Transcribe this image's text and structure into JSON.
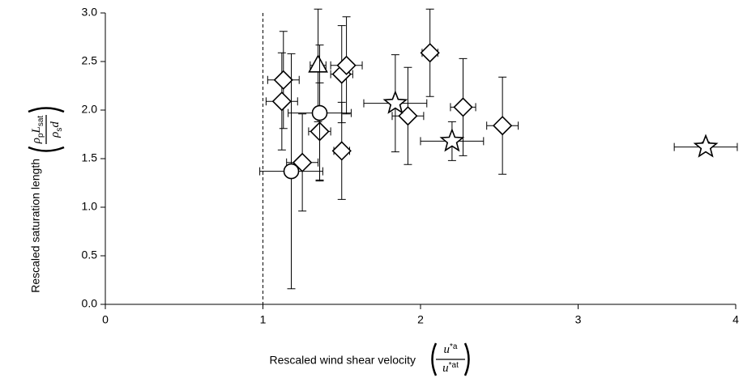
{
  "chart_data": {
    "type": "scatter",
    "xlabel": "Rescaled wind shear velocity",
    "ylabel": "Rescaled saturation length",
    "x_formula": {
      "numerator": [
        "u",
        "*a"
      ],
      "denominator": [
        "u",
        "*at"
      ]
    },
    "y_formula": {
      "numerator": [
        "ρ",
        "p",
        "L",
        "sat"
      ],
      "denominator": [
        "ρ",
        "s",
        "d"
      ]
    },
    "xlim": [
      0,
      4
    ],
    "ylim": [
      0,
      3
    ],
    "xticks": [
      0,
      1,
      2,
      3,
      4
    ],
    "yticks": [
      {
        "value": 0,
        "label": "0.0"
      },
      {
        "value": 0.5,
        "label": "0.5"
      },
      {
        "value": 1,
        "label": "1.0"
      },
      {
        "value": 1.5,
        "label": "1.5"
      },
      {
        "value": 2,
        "label": "2.0"
      },
      {
        "value": 2.5,
        "label": "2.5"
      },
      {
        "value": 3,
        "label": "3.0"
      }
    ],
    "vline": 1,
    "color": "#000000",
    "series": [
      {
        "marker": "diamond",
        "x": [
          1.13,
          1.12,
          1.25,
          1.36,
          1.5,
          1.5,
          1.53,
          1.92,
          2.06,
          2.27,
          2.52
        ],
        "values": [
          2.31,
          2.09,
          1.46,
          1.78,
          1.58,
          2.37,
          2.46,
          1.94,
          2.59,
          2.03,
          1.84
        ],
        "xerr": [
          0.1,
          0.1,
          0.1,
          0.07,
          0.05,
          0.07,
          0.1,
          0.1,
          0.05,
          0.08,
          0.1
        ],
        "yerr": [
          0.5,
          0.5,
          0.5,
          0.5,
          0.5,
          0.5,
          0.5,
          0.5,
          0.45,
          0.5,
          0.5
        ]
      },
      {
        "marker": "triangle",
        "x": [
          1.35
        ],
        "values": [
          2.46
        ],
        "xerr": [
          0.05
        ],
        "yerr": [
          0.58
        ]
      },
      {
        "marker": "circle",
        "x": [
          1.18,
          1.36
        ],
        "values": [
          1.37,
          1.97
        ],
        "xerr": [
          0.2,
          0.2
        ],
        "yerr": [
          1.21,
          0.7
        ]
      },
      {
        "marker": "star",
        "x": [
          1.84,
          2.2,
          3.81
        ],
        "values": [
          2.07,
          1.68,
          1.62
        ],
        "xerr": [
          0.2,
          0.2,
          0.2
        ],
        "yerr": [
          0.5,
          0.2,
          0.05
        ]
      }
    ]
  }
}
